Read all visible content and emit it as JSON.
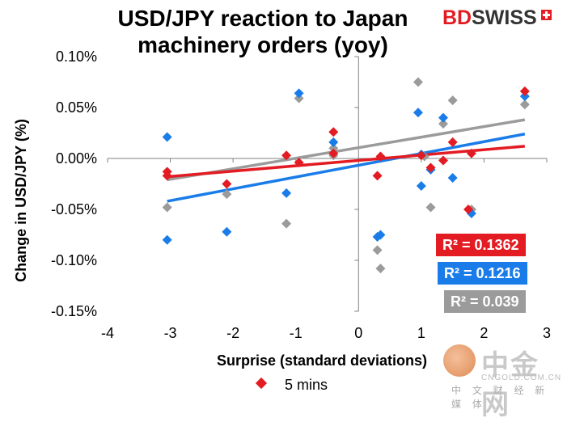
{
  "brand": {
    "part1": "BD",
    "part2": "SWISS"
  },
  "watermark": {
    "name": "中金网",
    "domain": "CNGOLD.COM.CN",
    "subtitle": "中 文 财 经 新 媒 体"
  },
  "legend": {
    "label": "5 mins",
    "color": "#e31c23"
  },
  "chart_data": {
    "type": "scatter",
    "title": "USD/JPY reaction to Japan machinery orders (yoy)",
    "xlabel": "Surprise (standard deviations)",
    "ylabel": "Change in USD/JPY  (%)",
    "xlim": [
      -4,
      3
    ],
    "ylim": [
      -0.15,
      0.1
    ],
    "x_ticks": [
      "-4",
      "-3",
      "-2",
      "-1",
      "0",
      "1",
      "2",
      "3"
    ],
    "y_ticks": [
      "0.10%",
      "0.05%",
      "0.00%",
      "-0.05%",
      "-0.10%",
      "-0.15%"
    ],
    "grid": false,
    "series": [
      {
        "name": "5 mins",
        "color": "#e31c23",
        "points": [
          [
            -3.05,
            -0.013
          ],
          [
            -3.05,
            -0.017
          ],
          [
            -2.1,
            -0.025
          ],
          [
            -1.15,
            0.003
          ],
          [
            -0.95,
            -0.004
          ],
          [
            -0.4,
            0.026
          ],
          [
            -0.4,
            0.005
          ],
          [
            0.3,
            -0.017
          ],
          [
            0.35,
            0.002
          ],
          [
            1.0,
            0.003
          ],
          [
            1.15,
            -0.009
          ],
          [
            1.35,
            -0.002
          ],
          [
            1.5,
            0.016
          ],
          [
            1.75,
            -0.05
          ],
          [
            1.8,
            0.005
          ],
          [
            2.65,
            0.066
          ]
        ],
        "trend": {
          "x": [
            -3.05,
            2.65
          ],
          "y": [
            -0.018,
            0.012
          ],
          "r2": "R² = 0.1362"
        }
      },
      {
        "name": "",
        "color": "#1a7ce8",
        "points": [
          [
            -3.05,
            0.021
          ],
          [
            -3.05,
            -0.08
          ],
          [
            -2.1,
            -0.072
          ],
          [
            -1.15,
            -0.034
          ],
          [
            -0.95,
            0.064
          ],
          [
            -0.4,
            0.016
          ],
          [
            0.3,
            -0.077
          ],
          [
            0.35,
            -0.075
          ],
          [
            0.95,
            0.045
          ],
          [
            1.0,
            0.004
          ],
          [
            1.0,
            -0.027
          ],
          [
            1.15,
            -0.011
          ],
          [
            1.35,
            0.04
          ],
          [
            1.5,
            -0.019
          ],
          [
            1.8,
            -0.054
          ],
          [
            2.65,
            0.061
          ]
        ],
        "trend": {
          "x": [
            -3.05,
            2.65
          ],
          "y": [
            -0.042,
            0.024
          ],
          "r2": "R² = 0.1216"
        }
      },
      {
        "name": "",
        "color": "#9b9b9b",
        "points": [
          [
            -3.05,
            -0.048
          ],
          [
            -2.1,
            -0.035
          ],
          [
            -1.15,
            -0.064
          ],
          [
            -0.95,
            0.059
          ],
          [
            -0.4,
            0.01
          ],
          [
            -0.4,
            0.003
          ],
          [
            0.3,
            -0.09
          ],
          [
            0.35,
            -0.108
          ],
          [
            0.95,
            0.075
          ],
          [
            1.05,
            0.002
          ],
          [
            1.15,
            -0.048
          ],
          [
            1.35,
            0.034
          ],
          [
            1.5,
            0.057
          ],
          [
            1.8,
            -0.05
          ],
          [
            2.65,
            0.053
          ]
        ],
        "trend": {
          "x": [
            -3.05,
            2.65
          ],
          "y": [
            -0.021,
            0.038
          ],
          "r2": "R² = 0.039"
        }
      }
    ]
  }
}
